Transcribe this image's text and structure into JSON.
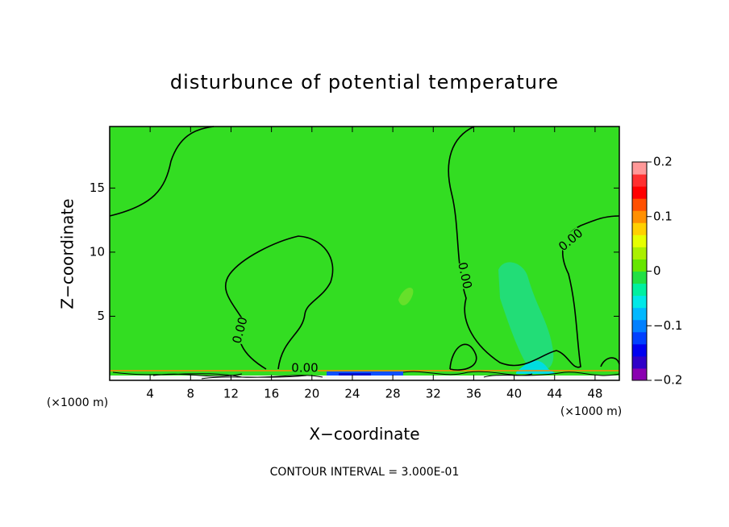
{
  "chart_data": {
    "type": "contour",
    "title": "disturbunce of potential temperature",
    "x_label": "X−coordinate",
    "y_label": "Z−coordinate",
    "x_unit": "(×1000 m)",
    "footnote": "CONTOUR INTERVAL = 3.000E-01",
    "xlim": [
      0,
      50.4
    ],
    "ylim": [
      0,
      19.8
    ],
    "xticks": [
      4,
      8,
      12,
      16,
      20,
      24,
      28,
      32,
      36,
      40,
      44,
      48
    ],
    "yticks": [
      5,
      10,
      15
    ],
    "contour_labels": [
      "0.00",
      "0.00",
      "0.00",
      "0.00"
    ],
    "colorbar": {
      "lim": [
        -0.2,
        0.2
      ],
      "ticks": [
        {
          "value": 0.2,
          "label": "0.2"
        },
        {
          "value": 0.1,
          "label": "0.1"
        },
        0,
        {
          "value": -0.1,
          "label": "−0.1"
        },
        {
          "value": -0.2,
          "label": "−0.2"
        }
      ],
      "colors": [
        "#8a00b0",
        "#3000c8",
        "#0000f0",
        "#0040ff",
        "#0080ff",
        "#00b8ff",
        "#00e8e8",
        "#00f0a0",
        "#22e044",
        "#66e600",
        "#aaf000",
        "#e6ff00",
        "#ffd000",
        "#ff9000",
        "#ff5000",
        "#ff0000",
        "#ff3030",
        "#ff9898"
      ]
    }
  }
}
